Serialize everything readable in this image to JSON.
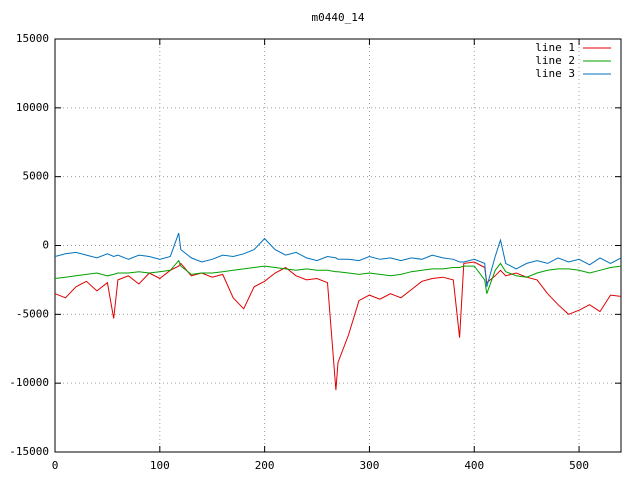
{
  "chart_data": {
    "type": "line",
    "title": "m0440_14",
    "x": [
      0,
      10,
      20,
      30,
      40,
      50,
      56,
      60,
      70,
      80,
      90,
      100,
      110,
      118,
      120,
      130,
      140,
      150,
      160,
      170,
      180,
      190,
      200,
      210,
      220,
      230,
      240,
      250,
      260,
      268,
      270,
      280,
      290,
      300,
      310,
      320,
      330,
      340,
      350,
      360,
      370,
      380,
      386,
      390,
      400,
      410,
      412,
      420,
      425,
      430,
      440,
      450,
      460,
      470,
      480,
      490,
      500,
      510,
      520,
      530,
      540
    ],
    "series": [
      {
        "name": "line 1",
        "color": "#e00000",
        "values": [
          -3500,
          -3800,
          -3000,
          -2600,
          -3300,
          -2700,
          -5300,
          -2500,
          -2200,
          -2800,
          -2000,
          -2400,
          -1800,
          -1500,
          -1300,
          -2200,
          -2000,
          -2300,
          -2100,
          -3800,
          -4600,
          -3000,
          -2600,
          -2000,
          -1600,
          -2200,
          -2500,
          -2400,
          -2700,
          -10500,
          -8500,
          -6500,
          -4000,
          -3600,
          -3900,
          -3500,
          -3800,
          -3200,
          -2600,
          -2400,
          -2300,
          -2500,
          -6700,
          -1300,
          -1200,
          -1600,
          -2700,
          -2200,
          -1800,
          -2200,
          -2000,
          -2300,
          -2500,
          -3500,
          -4300,
          -5000,
          -4700,
          -4300,
          -4800,
          -3600,
          -3700
        ]
      },
      {
        "name": "line 2",
        "color": "#00a000",
        "values": [
          -2400,
          -2300,
          -2200,
          -2100,
          -2000,
          -2200,
          -2100,
          -2000,
          -2000,
          -1900,
          -2000,
          -1900,
          -1800,
          -1100,
          -1500,
          -2100,
          -2000,
          -2000,
          -1900,
          -1800,
          -1700,
          -1600,
          -1500,
          -1600,
          -1700,
          -1800,
          -1700,
          -1800,
          -1800,
          -1900,
          -1900,
          -2000,
          -2100,
          -2000,
          -2100,
          -2200,
          -2100,
          -1900,
          -1800,
          -1700,
          -1700,
          -1600,
          -1600,
          -1500,
          -1500,
          -2500,
          -3500,
          -1800,
          -1300,
          -1900,
          -2200,
          -2300,
          -2000,
          -1800,
          -1700,
          -1700,
          -1800,
          -2000,
          -1800,
          -1600,
          -1500
        ]
      },
      {
        "name": "line 3",
        "color": "#0072bd",
        "values": [
          -800,
          -600,
          -500,
          -700,
          -900,
          -600,
          -800,
          -700,
          -1000,
          -700,
          -800,
          -1000,
          -800,
          900,
          -300,
          -900,
          -1200,
          -1000,
          -700,
          -800,
          -600,
          -300,
          500,
          -300,
          -700,
          -500,
          -900,
          -1100,
          -800,
          -900,
          -1000,
          -1000,
          -1100,
          -800,
          -1000,
          -900,
          -1100,
          -900,
          -1000,
          -700,
          -900,
          -1000,
          -1200,
          -1200,
          -1000,
          -1300,
          -3000,
          -800,
          400,
          -1300,
          -1700,
          -1300,
          -1100,
          -1300,
          -900,
          -1200,
          -1000,
          -1400,
          -900,
          -1300,
          -900
        ]
      }
    ],
    "xlim": [
      0,
      540
    ],
    "xticks": [
      0,
      100,
      200,
      300,
      400,
      500
    ],
    "ylim": [
      -15000,
      15000
    ],
    "yticks": [
      -15000,
      -10000,
      -5000,
      0,
      5000,
      10000,
      15000
    ],
    "grid": true,
    "legend": "top-right"
  }
}
